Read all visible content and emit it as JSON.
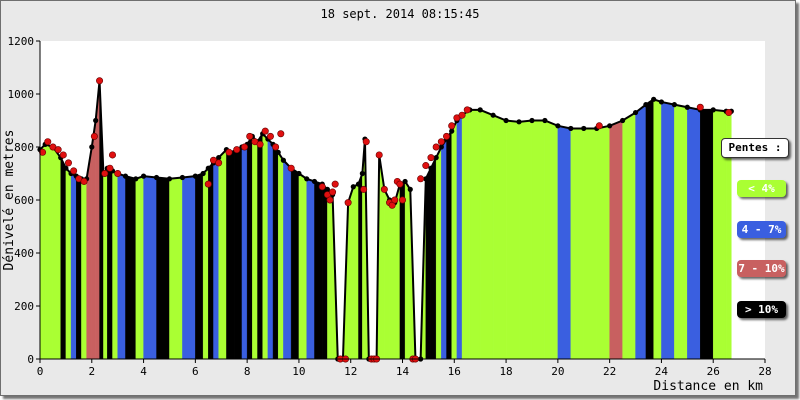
{
  "chart_data": {
    "type": "area",
    "title": "18 sept. 2014 08:15:45",
    "xlabel": "Distance en km",
    "ylabel": "Dénivelé en metres",
    "xlim": [
      0,
      28
    ],
    "ylim": [
      0,
      1200
    ],
    "xticks": [
      "0",
      "2",
      "4",
      "6",
      "8",
      "10",
      "12",
      "14",
      "16",
      "18",
      "20",
      "22",
      "24",
      "26",
      "28"
    ],
    "yticks": [
      "0",
      "200",
      "400",
      "600",
      "800",
      "1000",
      "1200"
    ],
    "grid": false,
    "legend": {
      "title": "Pentes :",
      "placement": "right",
      "items": [
        {
          "label": "< 4%",
          "color": "#aaff33"
        },
        {
          "label": "4 - 7%",
          "color": "#3a5fe0"
        },
        {
          "label": "7 - 10%",
          "color": "#c86060"
        },
        {
          "label": "> 10%",
          "color": "#000000"
        }
      ]
    },
    "x": [
      0,
      0.2,
      0.5,
      0.8,
      1.0,
      1.2,
      1.4,
      1.6,
      1.8,
      2.0,
      2.15,
      2.3,
      2.45,
      2.6,
      2.8,
      3.0,
      3.3,
      3.7,
      4.0,
      4.5,
      5.0,
      5.5,
      6.0,
      6.3,
      6.5,
      6.7,
      6.9,
      7.2,
      7.5,
      7.8,
      8.0,
      8.2,
      8.4,
      8.6,
      8.8,
      9.0,
      9.2,
      9.4,
      9.7,
      10.0,
      10.3,
      10.6,
      10.9,
      11.1,
      11.3,
      11.5,
      11.7,
      11.9,
      12.1,
      12.3,
      12.45,
      12.55,
      12.7,
      12.85,
      13.0,
      13.1,
      13.3,
      13.5,
      13.7,
      13.9,
      14.1,
      14.3,
      14.5,
      14.7,
      14.9,
      15.1,
      15.3,
      15.5,
      15.7,
      15.9,
      16.1,
      16.3,
      16.6,
      17.0,
      17.5,
      18.0,
      18.5,
      19.0,
      19.5,
      20.0,
      20.5,
      21.0,
      21.5,
      22.0,
      22.5,
      23.0,
      23.4,
      23.7,
      24.0,
      24.5,
      25.0,
      25.5,
      26.0,
      26.5,
      26.7
    ],
    "values": [
      790,
      810,
      800,
      760,
      720,
      700,
      690,
      680,
      680,
      800,
      900,
      1050,
      700,
      720,
      710,
      700,
      690,
      680,
      690,
      685,
      680,
      685,
      690,
      700,
      720,
      740,
      760,
      790,
      780,
      800,
      810,
      840,
      820,
      850,
      830,
      810,
      780,
      750,
      720,
      700,
      680,
      670,
      660,
      640,
      620,
      0,
      0,
      590,
      650,
      660,
      700,
      830,
      0,
      0,
      0,
      770,
      640,
      600,
      590,
      660,
      670,
      640,
      0,
      0,
      680,
      720,
      760,
      800,
      830,
      860,
      900,
      920,
      940,
      940,
      920,
      900,
      895,
      900,
      900,
      880,
      870,
      870,
      870,
      880,
      900,
      930,
      960,
      980,
      970,
      960,
      950,
      940,
      940,
      935,
      935
    ],
    "slope_classes": [
      "<4",
      "<4",
      "<4",
      ">10",
      "<4",
      "4-7",
      ">10",
      "<4",
      "7-10",
      "7-10",
      "7-10",
      ">10",
      "<4",
      ">10",
      "<4",
      "4-7",
      ">10",
      "<4",
      "4-7",
      ">10",
      "<4",
      "4-7",
      ">10",
      "<4",
      ">10",
      "4-7",
      "<4",
      ">10",
      ">10",
      "4-7",
      ">10",
      "<4",
      ">10",
      "<4",
      "4-7",
      ">10",
      "<4",
      "4-7",
      ">10",
      "<4",
      "4-7",
      ">10",
      ">10",
      "<4",
      "<4",
      "<4",
      "<4",
      "<4",
      "<4",
      ">10",
      "<4",
      "<4",
      "<4",
      "<4",
      "<4",
      "<4",
      "<4",
      "<4",
      "<4",
      ">10",
      "<4",
      "<4",
      "<4",
      "<4",
      ">10",
      ">10",
      "<4",
      "4-7",
      ">10",
      "<4",
      "4-7",
      "<4",
      "<4",
      "<4",
      "<4",
      "<4",
      "<4",
      "<4",
      "<4",
      "4-7",
      "<4",
      "<4",
      "<4",
      "7-10",
      "<4",
      "4-7",
      ">10",
      "<4",
      "4-7",
      "<4",
      "4-7",
      ">10",
      "<4",
      "<4"
    ],
    "red_points": [
      [
        0.1,
        780
      ],
      [
        0.3,
        820
      ],
      [
        0.5,
        800
      ],
      [
        0.7,
        790
      ],
      [
        0.9,
        770
      ],
      [
        1.1,
        740
      ],
      [
        1.3,
        710
      ],
      [
        1.5,
        680
      ],
      [
        1.7,
        670
      ],
      [
        2.1,
        840
      ],
      [
        2.3,
        1050
      ],
      [
        2.5,
        700
      ],
      [
        2.7,
        720
      ],
      [
        2.8,
        770
      ],
      [
        3.0,
        700
      ],
      [
        6.5,
        660
      ],
      [
        6.7,
        750
      ],
      [
        6.9,
        740
      ],
      [
        7.3,
        780
      ],
      [
        7.6,
        790
      ],
      [
        7.9,
        800
      ],
      [
        8.1,
        840
      ],
      [
        8.3,
        820
      ],
      [
        8.5,
        810
      ],
      [
        8.7,
        860
      ],
      [
        8.9,
        840
      ],
      [
        9.1,
        800
      ],
      [
        9.3,
        850
      ],
      [
        9.7,
        720
      ],
      [
        10.9,
        650
      ],
      [
        11.1,
        620
      ],
      [
        11.2,
        600
      ],
      [
        11.3,
        630
      ],
      [
        11.4,
        660
      ],
      [
        11.6,
        0
      ],
      [
        11.8,
        0
      ],
      [
        11.9,
        590
      ],
      [
        12.5,
        640
      ],
      [
        12.6,
        820
      ],
      [
        12.8,
        0
      ],
      [
        12.9,
        0
      ],
      [
        13.0,
        0
      ],
      [
        13.1,
        770
      ],
      [
        13.3,
        640
      ],
      [
        13.5,
        590
      ],
      [
        13.6,
        580
      ],
      [
        13.7,
        600
      ],
      [
        13.8,
        670
      ],
      [
        13.9,
        660
      ],
      [
        14.0,
        600
      ],
      [
        14.4,
        0
      ],
      [
        14.5,
        0
      ],
      [
        14.7,
        680
      ],
      [
        14.9,
        730
      ],
      [
        15.1,
        760
      ],
      [
        15.3,
        800
      ],
      [
        15.5,
        820
      ],
      [
        15.7,
        840
      ],
      [
        15.9,
        880
      ],
      [
        16.1,
        910
      ],
      [
        16.3,
        920
      ],
      [
        16.5,
        940
      ],
      [
        21.6,
        880
      ],
      [
        25.5,
        950
      ],
      [
        26.6,
        930
      ]
    ]
  }
}
